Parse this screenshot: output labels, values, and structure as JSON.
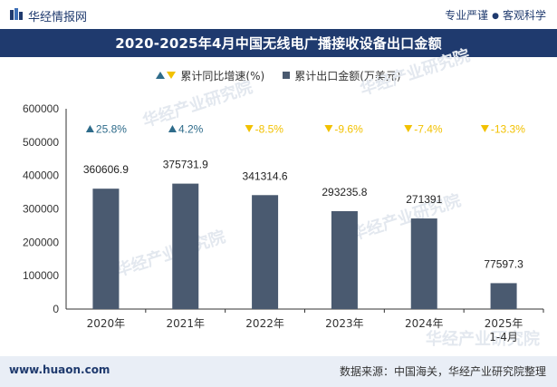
{
  "header": {
    "brand": "华经情报网",
    "slogan_left": "专业严谨",
    "slogan_right": "客观科学"
  },
  "title": "2020-2025年4月中国无线电广播接收设备出口金额",
  "legend": {
    "growth_label": "累计同比增速(%)",
    "amount_label": "累计出口金额(万美元)"
  },
  "watermark": "华经产业研究院",
  "footer": {
    "site": "www.huaon.com",
    "source": "数据来源：中国海关，华经产业研究院整理"
  },
  "colors": {
    "bar": "#4a5a70",
    "header_bg": "#1f3a6e",
    "up": "#2e6b8a",
    "down": "#f2c100",
    "footer_bg": "#e9eef6"
  },
  "chart_data": {
    "type": "bar",
    "categories": [
      "2020年",
      "2021年",
      "2022年",
      "2023年",
      "2024年",
      "2025年\n1-4月"
    ],
    "series": [
      {
        "name": "累计出口金额(万美元)",
        "values": [
          360606.9,
          375731.9,
          341314.6,
          293235.8,
          271391,
          77597.3
        ],
        "labels": [
          "360606.9",
          "375731.9",
          "341314.6",
          "293235.8",
          "271391",
          "77597.3"
        ]
      },
      {
        "name": "累计同比增速(%)",
        "values": [
          25.8,
          4.2,
          -8.5,
          -9.6,
          -7.4,
          -13.3
        ],
        "labels": [
          "25.8%",
          "4.2%",
          "-8.5%",
          "-9.6%",
          "-7.4%",
          "-13.3%"
        ]
      }
    ],
    "yticks": [
      "0",
      "100000",
      "200000",
      "300000",
      "400000",
      "500000",
      "600000"
    ],
    "ylim": [
      0,
      600000
    ],
    "grid": false,
    "legend_position": "top"
  }
}
